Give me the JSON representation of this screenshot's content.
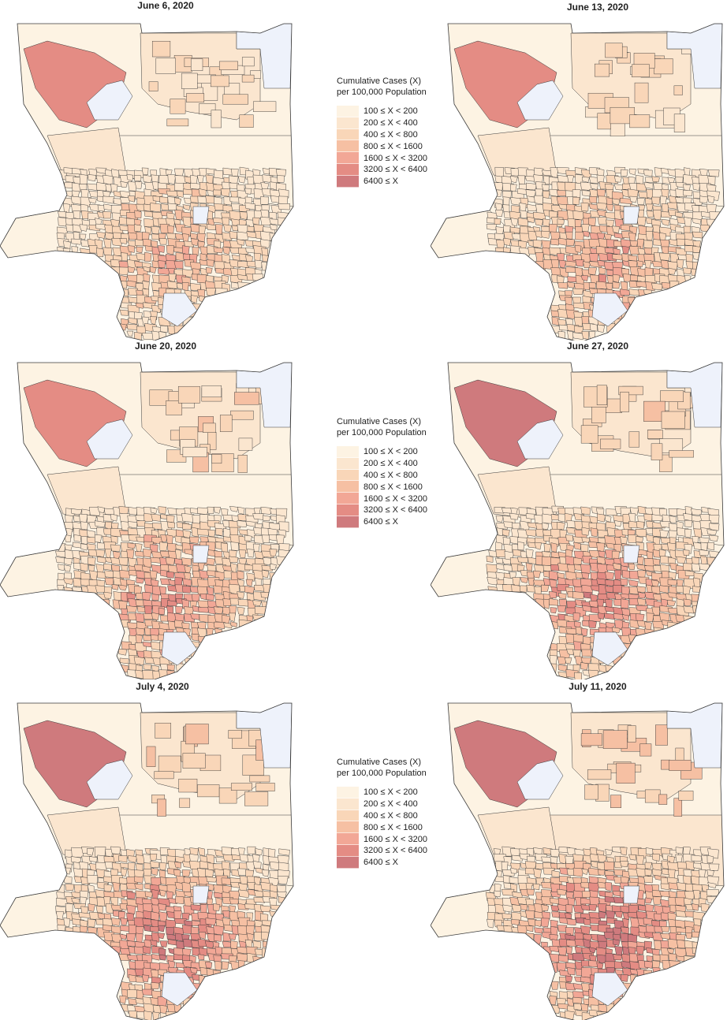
{
  "panels": [
    {
      "title": "June 6, 2020",
      "intensity": 1.0
    },
    {
      "title": "June 13, 2020",
      "intensity": 1.15
    },
    {
      "title": "June 20, 2020",
      "intensity": 1.3
    },
    {
      "title": "June 27, 2020",
      "intensity": 1.45
    },
    {
      "title": "July 4, 2020",
      "intensity": 1.6
    },
    {
      "title": "July 11, 2020",
      "intensity": 1.8
    }
  ],
  "legend": {
    "title_line1": "Cumulative Cases (X)",
    "title_line2": "per 100,000 Population",
    "bins": [
      {
        "label": "100 ≤ X < 200",
        "color": "#fdf3e3"
      },
      {
        "label": "200 ≤ X < 400",
        "color": "#fbe6cf"
      },
      {
        "label": "400 ≤ X < 800",
        "color": "#f9d6b8"
      },
      {
        "label": "800 ≤ X < 1600",
        "color": "#f6c0a3"
      },
      {
        "label": "1600 ≤ X < 3200",
        "color": "#f2a796"
      },
      {
        "label": "3200 ≤ X < 6400",
        "color": "#e48c84"
      },
      {
        "label": "6400 ≤ X",
        "color": "#cf7a7d"
      }
    ]
  },
  "colors": {
    "no_data": "#eef2fb",
    "boundary": "#3a3a3a"
  }
}
